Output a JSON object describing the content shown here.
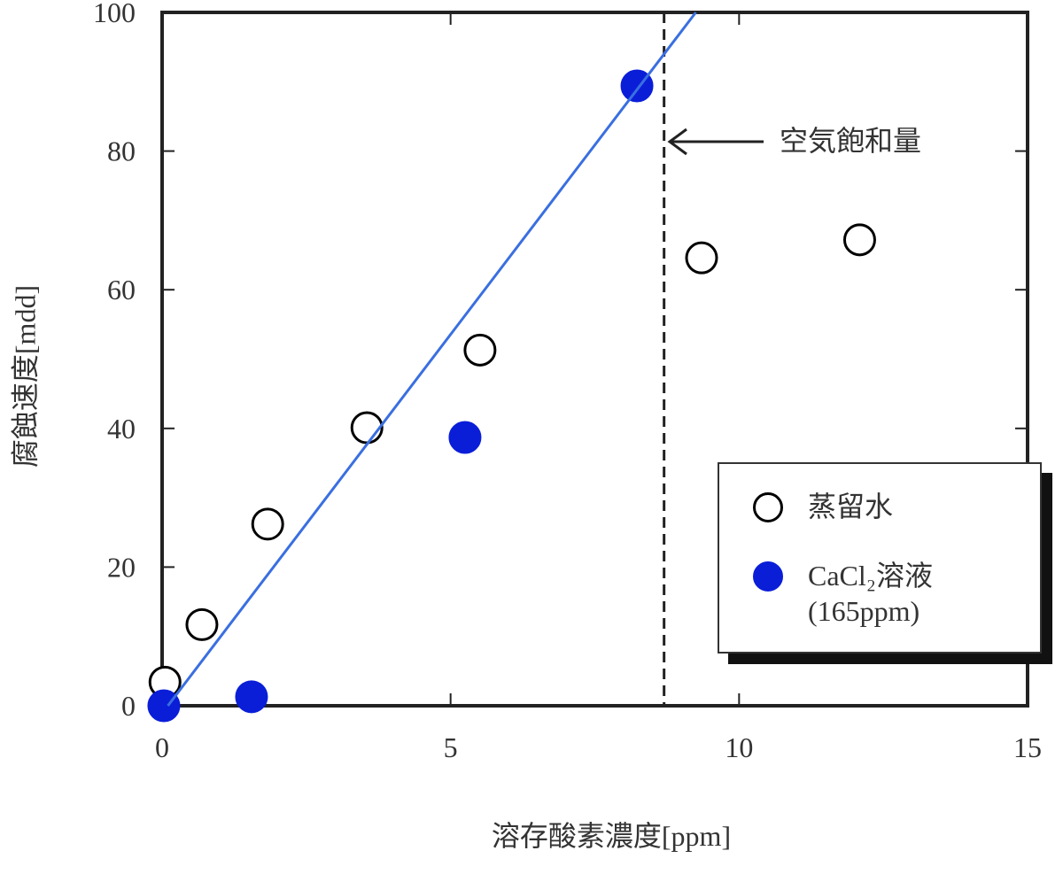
{
  "chart_data": {
    "type": "scatter",
    "xlabel": "溶存酸素濃度[ppm]",
    "ylabel": "腐蝕速度[mdd]",
    "xlim": [
      0,
      15
    ],
    "ylim": [
      0,
      100
    ],
    "xticks": [
      0,
      5,
      10,
      15
    ],
    "yticks": [
      0,
      20,
      40,
      60,
      80,
      100
    ],
    "series": [
      {
        "name": "蒸留水",
        "color": "#000000",
        "marker": "open",
        "x": [
          0.05,
          0.69,
          1.83,
          3.55,
          5.51,
          9.35,
          12.09
        ],
        "values": [
          3.4,
          11.7,
          26.2,
          40.1,
          51.3,
          64.6,
          67.2
        ]
      },
      {
        "name": "CaCl₂溶液 (165ppm)",
        "color": "#0a1ed8",
        "marker": "filled",
        "x": [
          0.03,
          1.55,
          5.25,
          8.23
        ],
        "values": [
          0,
          1.3,
          38.7,
          89.4
        ]
      },
      {
        "color": "#3a6fe0",
        "marker": "line",
        "x": [
          0.1,
          9.25
        ],
        "values": [
          0,
          100
        ]
      }
    ],
    "vline": 8.7,
    "annotation": "空気飽和量",
    "legend": "lower right"
  }
}
